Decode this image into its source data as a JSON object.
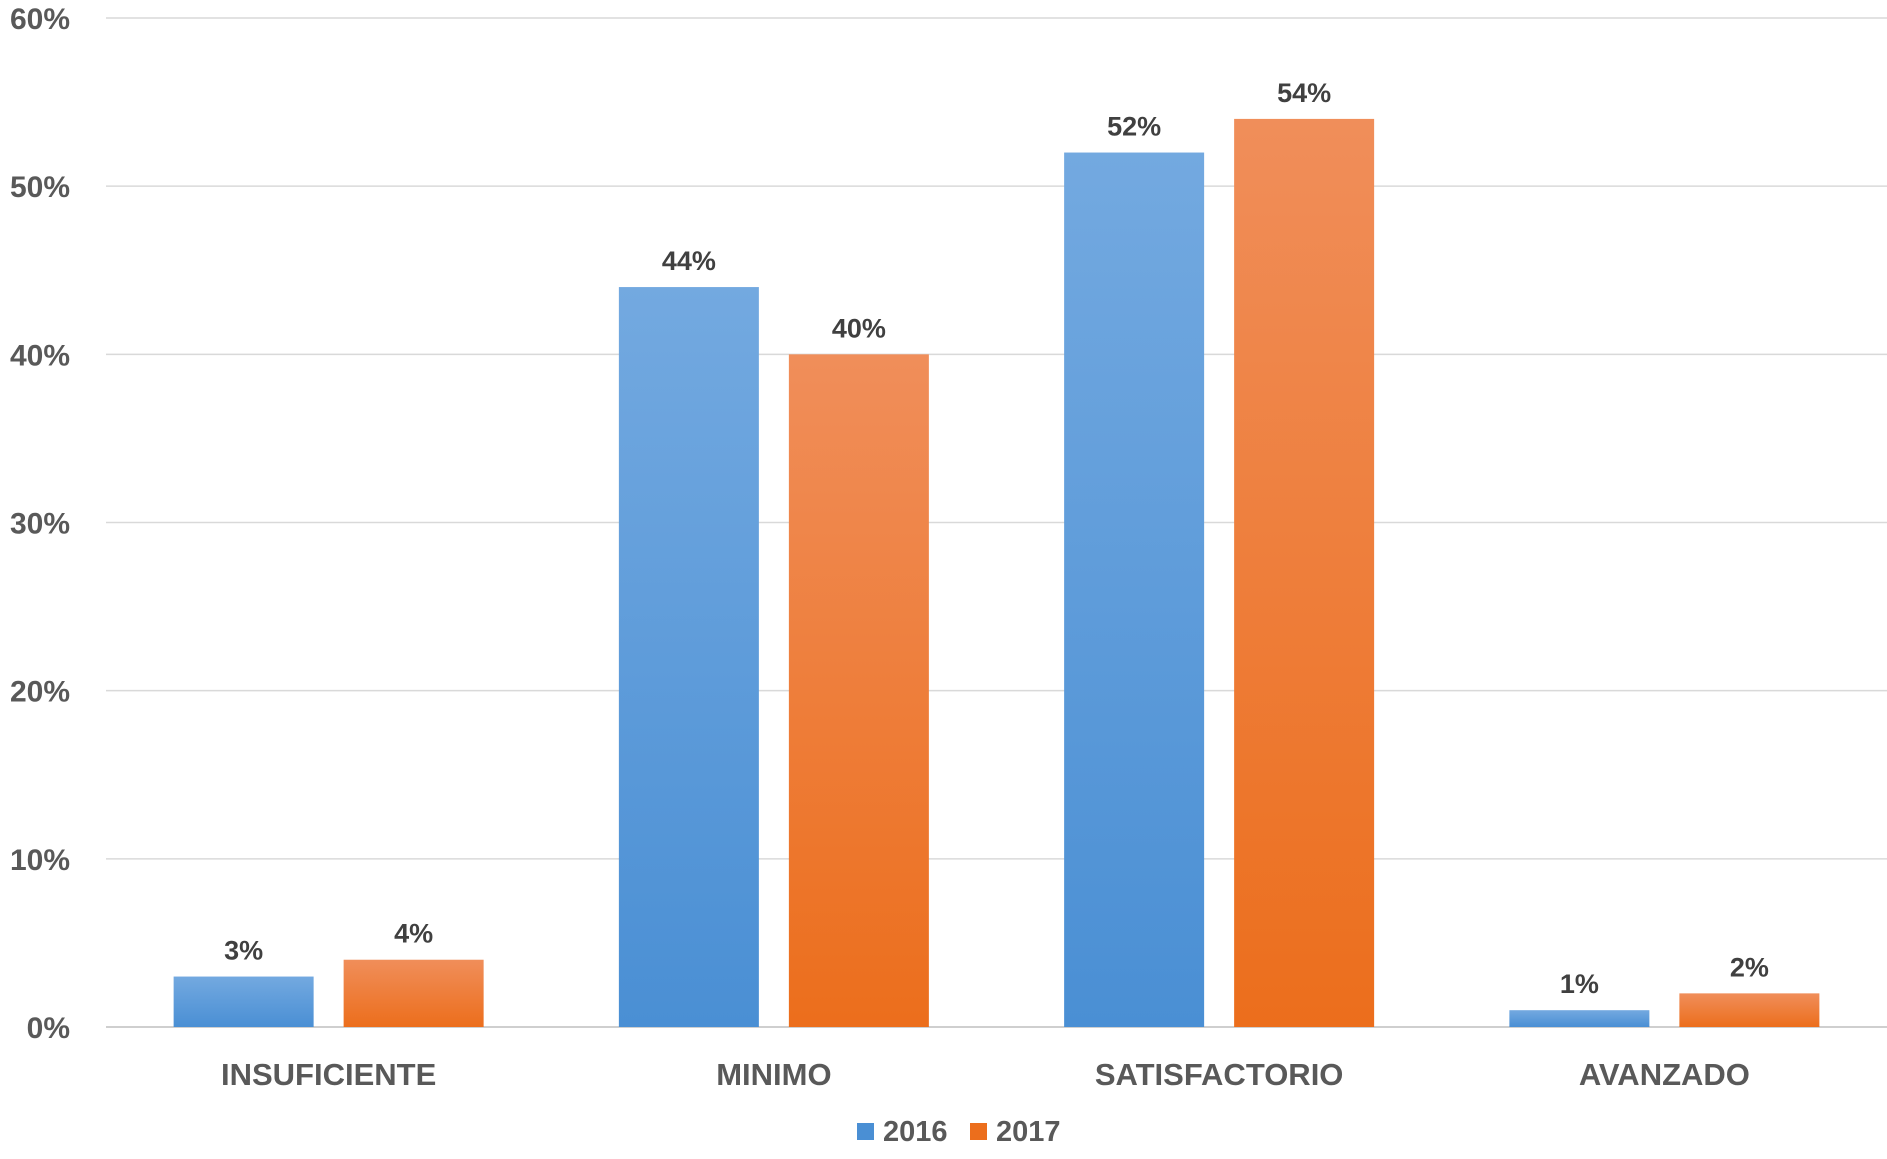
{
  "chart_data": {
    "type": "bar",
    "categories": [
      "INSUFICIENTE",
      "MINIMO",
      "SATISFACTORIO",
      "AVANZADO"
    ],
    "series": [
      {
        "name": "2016",
        "values": [
          3,
          44,
          52,
          1
        ],
        "labels": [
          "3%",
          "44%",
          "52%",
          "1%"
        ],
        "color": "#4a8fd4",
        "color_light": "#73a9e0"
      },
      {
        "name": "2017",
        "values": [
          4,
          40,
          54,
          2
        ],
        "labels": [
          "4%",
          "40%",
          "54%",
          "2%"
        ],
        "color": "#ec6e1c",
        "color_light": "#f08e5a"
      }
    ],
    "yticks": [
      0,
      10,
      20,
      30,
      40,
      50,
      60
    ],
    "ytick_labels": [
      "0%",
      "10%",
      "20%",
      "30%",
      "40%",
      "50%",
      "60%"
    ],
    "ylim": [
      0,
      60
    ],
    "grid": true,
    "legend": "bottom-center"
  }
}
